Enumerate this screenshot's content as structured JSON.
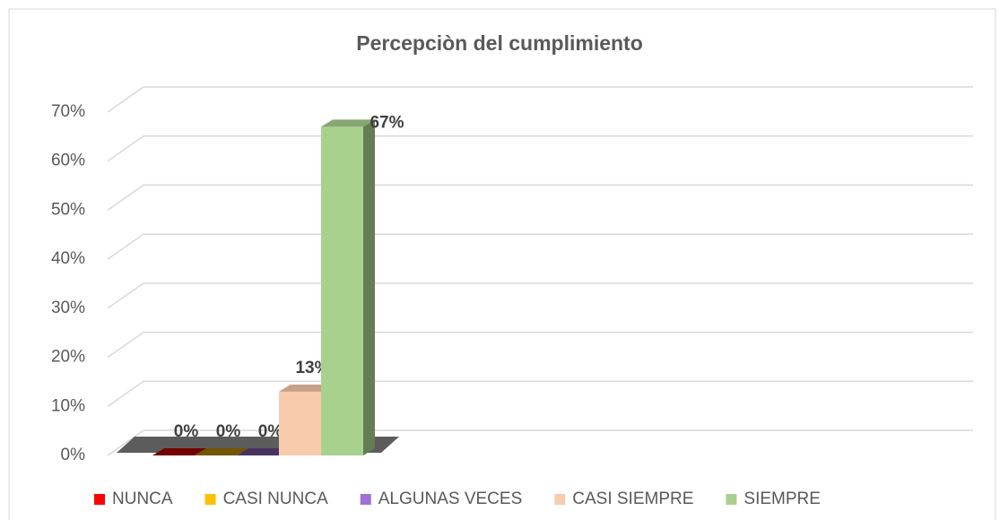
{
  "chart_data": {
    "type": "bar",
    "title": "Percepciòn del cumplimiento",
    "series": [
      {
        "name": "NUNCA",
        "color": "#ff0000",
        "values": [
          0
        ],
        "value_labels": [
          "0%"
        ]
      },
      {
        "name": "CASI NUNCA",
        "color": "#ffc000",
        "values": [
          0
        ],
        "value_labels": [
          "0%"
        ]
      },
      {
        "name": "ALGUNAS VECES",
        "color": "#a070d8",
        "values": [
          0
        ],
        "value_labels": [
          "0%"
        ]
      },
      {
        "name": "CASI SIEMPRE",
        "color": "#f8cbad",
        "values": [
          13
        ],
        "value_labels": [
          "13%"
        ]
      },
      {
        "name": "SIEMPRE",
        "color": "#a9d18e",
        "values": [
          67
        ],
        "value_labels": [
          "67%"
        ]
      }
    ],
    "ylim": [
      0,
      70
    ],
    "yticks": [
      {
        "value": 0,
        "label": "0%"
      },
      {
        "value": 10,
        "label": "10%"
      },
      {
        "value": 20,
        "label": "20%"
      },
      {
        "value": 30,
        "label": "30%"
      },
      {
        "value": 40,
        "label": "40%"
      },
      {
        "value": 50,
        "label": "50%"
      },
      {
        "value": 60,
        "label": "60%"
      },
      {
        "value": 70,
        "label": "70%"
      }
    ],
    "grid": true,
    "legend": "bottom"
  }
}
